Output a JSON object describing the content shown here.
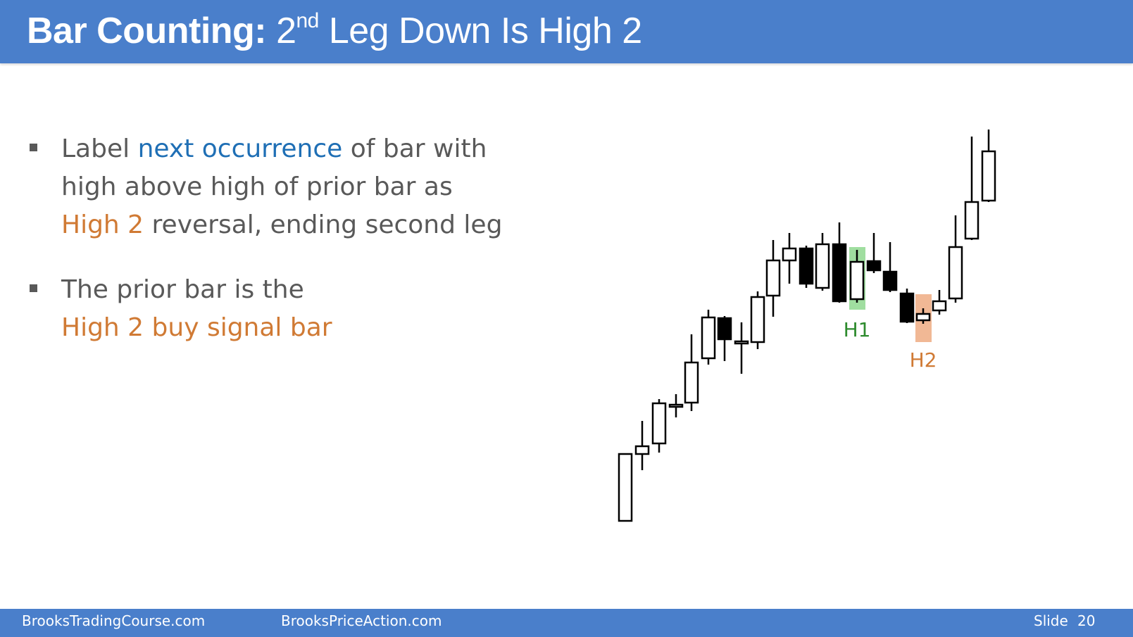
{
  "header": {
    "title_bold": "Bar Counting:",
    "title_num": "2",
    "title_sup": "nd",
    "title_rest": "Leg Down Is High 2"
  },
  "bullets": [
    {
      "line1_a": "Label ",
      "line1_b": "next occurrence",
      "line1_c": " of bar with",
      "line2": "high above high of prior bar as",
      "line3_a": "High 2",
      "line3_b": " reversal, ending second leg"
    },
    {
      "line1": "The prior bar is the",
      "line2": "High 2 buy signal bar"
    }
  ],
  "chart_labels": {
    "h1": "H1",
    "h2": "H2"
  },
  "colors": {
    "title_bar": "#4a7fcb",
    "blue_text": "#1f6fb5",
    "orange_text": "#d07a34",
    "h1_label": "#2e8b2e",
    "h1_highlight": "#8fd88f",
    "h2_highlight": "#f0b08a"
  },
  "footer": {
    "left": "BrooksTradingCourse.com",
    "center": "BrooksPriceAction.com",
    "slide_label": "Slide",
    "slide_number": "20"
  }
}
